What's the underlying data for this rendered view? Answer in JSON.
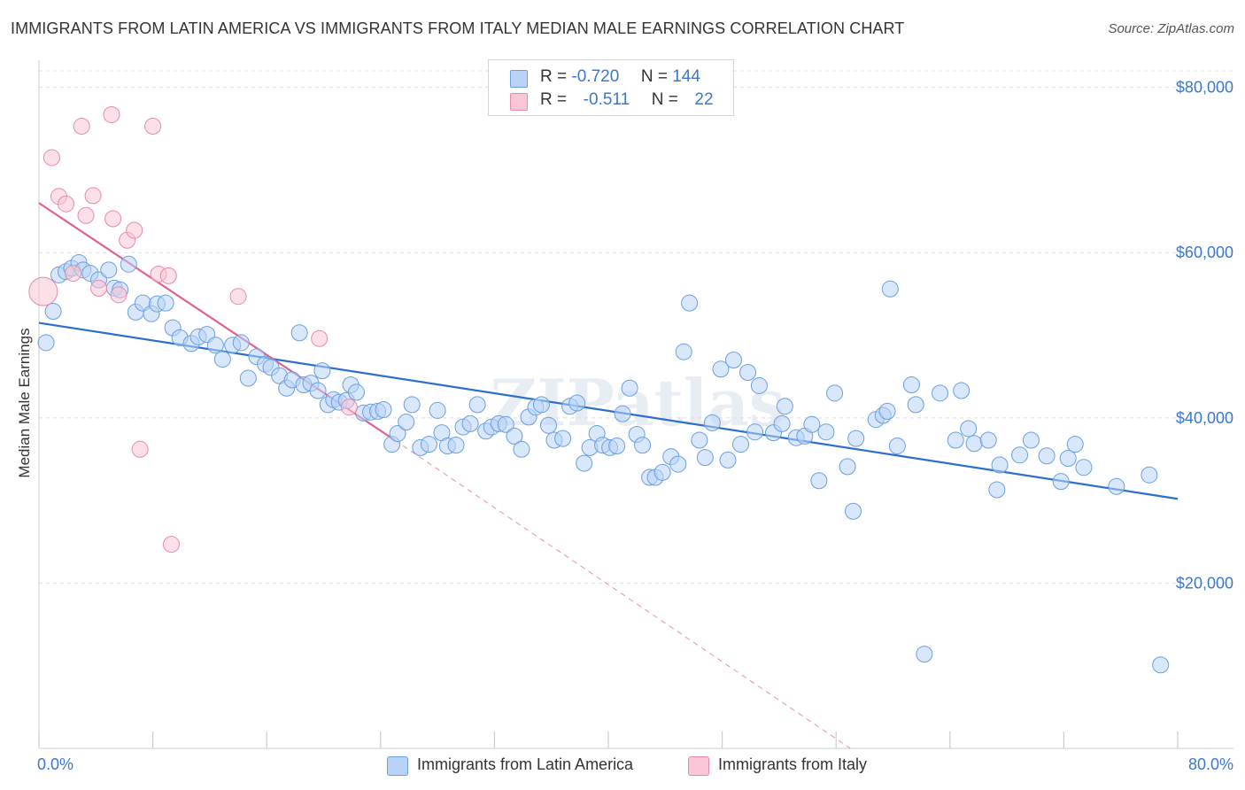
{
  "title": "IMMIGRANTS FROM LATIN AMERICA VS IMMIGRANTS FROM ITALY MEDIAN MALE EARNINGS CORRELATION CHART",
  "source": "Source: ZipAtlas.com",
  "watermark": "ZIPatlas",
  "legend_top": {
    "rows": [
      {
        "r_label": "R =",
        "r_value": "-0.720",
        "n_label": "N =",
        "n_value": "144"
      },
      {
        "r_label": "R =",
        "r_value": "-0.511",
        "n_label": "N =",
        "n_value": "22"
      }
    ]
  },
  "colors": {
    "blue_fill": "#b8d3f5",
    "blue_stroke": "#6a9fe0",
    "blue_line": "#2c6fce",
    "pink_fill": "#f8c6d6",
    "pink_stroke": "#e88aa8",
    "pink_line": "#e0608c",
    "axis_text": "#3a77d0",
    "grid": "#dddddd"
  },
  "chart_data": {
    "type": "scatter",
    "title": "IMMIGRANTS FROM LATIN AMERICA VS IMMIGRANTS FROM ITALY MEDIAN MALE EARNINGS CORRELATION CHART",
    "xlabel": "",
    "ylabel": "Median Male Earnings",
    "xlim": [
      0,
      80
    ],
    "ylim": [
      0,
      82000
    ],
    "x_tick_labels": [
      "0.0%",
      "80.0%"
    ],
    "y_ticks": [
      20000,
      40000,
      60000,
      80000
    ],
    "y_tick_labels": [
      "$20,000",
      "$40,000",
      "$60,000",
      "$80,000"
    ],
    "grid": true,
    "legend_position": "bottom-center",
    "series": [
      {
        "name": "Immigrants from Latin America",
        "stats": {
          "R": -0.72,
          "N": 144
        },
        "trend": {
          "x": [
            0,
            80
          ],
          "y": [
            51500,
            30200
          ]
        },
        "points": [
          [
            0.5,
            49100
          ],
          [
            1.0,
            52900
          ],
          [
            1.4,
            57300
          ],
          [
            1.9,
            57700
          ],
          [
            2.3,
            58100
          ],
          [
            2.8,
            58800
          ],
          [
            3.1,
            57900
          ],
          [
            3.6,
            57500
          ],
          [
            4.2,
            56700
          ],
          [
            4.9,
            57900
          ],
          [
            5.3,
            55700
          ],
          [
            5.7,
            55500
          ],
          [
            6.3,
            58600
          ],
          [
            6.8,
            52800
          ],
          [
            7.3,
            53900
          ],
          [
            7.9,
            52600
          ],
          [
            8.3,
            53800
          ],
          [
            8.9,
            53900
          ],
          [
            9.4,
            50900
          ],
          [
            9.9,
            49700
          ],
          [
            10.7,
            49000
          ],
          [
            11.2,
            49800
          ],
          [
            11.8,
            50100
          ],
          [
            12.4,
            48800
          ],
          [
            12.9,
            47100
          ],
          [
            13.6,
            48800
          ],
          [
            14.2,
            49100
          ],
          [
            14.7,
            44800
          ],
          [
            15.3,
            47400
          ],
          [
            15.9,
            46500
          ],
          [
            16.3,
            46100
          ],
          [
            16.9,
            45100
          ],
          [
            17.4,
            43600
          ],
          [
            17.8,
            44600
          ],
          [
            18.3,
            50300
          ],
          [
            18.6,
            44000
          ],
          [
            19.1,
            44200
          ],
          [
            19.6,
            43300
          ],
          [
            19.9,
            45700
          ],
          [
            20.3,
            41600
          ],
          [
            20.7,
            42200
          ],
          [
            21.1,
            41900
          ],
          [
            21.6,
            42100
          ],
          [
            21.9,
            44000
          ],
          [
            22.3,
            43100
          ],
          [
            22.8,
            40600
          ],
          [
            23.3,
            40700
          ],
          [
            23.8,
            40800
          ],
          [
            24.2,
            41000
          ],
          [
            24.8,
            36800
          ],
          [
            25.2,
            38100
          ],
          [
            25.8,
            39500
          ],
          [
            26.2,
            41600
          ],
          [
            26.8,
            36400
          ],
          [
            27.4,
            36800
          ],
          [
            28.0,
            40900
          ],
          [
            28.3,
            38200
          ],
          [
            28.7,
            36600
          ],
          [
            29.3,
            36700
          ],
          [
            29.8,
            38900
          ],
          [
            30.3,
            39300
          ],
          [
            30.8,
            41600
          ],
          [
            31.4,
            38400
          ],
          [
            31.8,
            38900
          ],
          [
            32.3,
            39300
          ],
          [
            32.8,
            39200
          ],
          [
            33.4,
            37800
          ],
          [
            33.9,
            36200
          ],
          [
            34.4,
            40100
          ],
          [
            34.9,
            41300
          ],
          [
            35.3,
            41600
          ],
          [
            35.8,
            39100
          ],
          [
            36.2,
            37300
          ],
          [
            36.8,
            37500
          ],
          [
            37.3,
            41400
          ],
          [
            37.8,
            41800
          ],
          [
            38.3,
            34500
          ],
          [
            38.7,
            36400
          ],
          [
            39.2,
            38100
          ],
          [
            39.6,
            36700
          ],
          [
            40.1,
            36400
          ],
          [
            40.6,
            36600
          ],
          [
            41.0,
            40500
          ],
          [
            41.5,
            43600
          ],
          [
            42.0,
            38000
          ],
          [
            42.4,
            36700
          ],
          [
            42.9,
            32800
          ],
          [
            43.3,
            32800
          ],
          [
            43.8,
            33400
          ],
          [
            44.4,
            35300
          ],
          [
            44.9,
            34400
          ],
          [
            45.3,
            48000
          ],
          [
            45.7,
            53900
          ],
          [
            46.4,
            37300
          ],
          [
            46.8,
            35200
          ],
          [
            47.3,
            39400
          ],
          [
            47.9,
            45900
          ],
          [
            48.4,
            34900
          ],
          [
            48.8,
            47000
          ],
          [
            49.3,
            36800
          ],
          [
            49.8,
            45500
          ],
          [
            50.3,
            38300
          ],
          [
            50.6,
            43900
          ],
          [
            51.6,
            38200
          ],
          [
            52.2,
            39300
          ],
          [
            52.4,
            41400
          ],
          [
            53.2,
            37600
          ],
          [
            53.8,
            37800
          ],
          [
            54.3,
            39200
          ],
          [
            54.8,
            32400
          ],
          [
            55.3,
            38300
          ],
          [
            55.9,
            43000
          ],
          [
            56.8,
            34100
          ],
          [
            57.2,
            28700
          ],
          [
            57.4,
            37500
          ],
          [
            58.8,
            39800
          ],
          [
            59.3,
            40300
          ],
          [
            59.6,
            40800
          ],
          [
            60.3,
            36600
          ],
          [
            61.3,
            44000
          ],
          [
            61.6,
            41600
          ],
          [
            62.2,
            11400
          ],
          [
            63.3,
            43000
          ],
          [
            64.4,
            37300
          ],
          [
            64.8,
            43300
          ],
          [
            65.3,
            38700
          ],
          [
            65.7,
            36900
          ],
          [
            66.7,
            37300
          ],
          [
            67.3,
            31300
          ],
          [
            67.5,
            34300
          ],
          [
            68.9,
            35500
          ],
          [
            69.7,
            37300
          ],
          [
            70.8,
            35400
          ],
          [
            71.8,
            32300
          ],
          [
            72.3,
            35100
          ],
          [
            72.8,
            36800
          ],
          [
            73.4,
            34000
          ],
          [
            75.7,
            31700
          ],
          [
            78.0,
            33100
          ],
          [
            78.8,
            10100
          ],
          [
            59.8,
            55600
          ]
        ]
      },
      {
        "name": "Immigrants from Italy",
        "stats": {
          "R": -0.511,
          "N": 22
        },
        "trend": {
          "x": [
            0,
            25
          ],
          "y": [
            66000,
            37300
          ]
        },
        "trend_extension": {
          "x": [
            25,
            57
          ],
          "y": [
            37300,
            0
          ]
        },
        "points": [
          [
            0.3,
            55300
          ],
          [
            0.9,
            71500
          ],
          [
            1.4,
            66800
          ],
          [
            1.9,
            65900
          ],
          [
            2.4,
            57500
          ],
          [
            3.0,
            75300
          ],
          [
            3.3,
            64500
          ],
          [
            3.8,
            66900
          ],
          [
            4.2,
            55700
          ],
          [
            5.1,
            76700
          ],
          [
            5.2,
            64100
          ],
          [
            5.6,
            54900
          ],
          [
            6.2,
            61500
          ],
          [
            6.7,
            62700
          ],
          [
            7.1,
            36200
          ],
          [
            8.0,
            75300
          ],
          [
            8.4,
            57400
          ],
          [
            9.1,
            57200
          ],
          [
            9.3,
            24700
          ],
          [
            14.0,
            54700
          ],
          [
            19.7,
            49600
          ],
          [
            21.8,
            41300
          ]
        ]
      }
    ]
  },
  "legend_bottom": [
    {
      "label": "Immigrants from Latin America"
    },
    {
      "label": "Immigrants from Italy"
    }
  ]
}
